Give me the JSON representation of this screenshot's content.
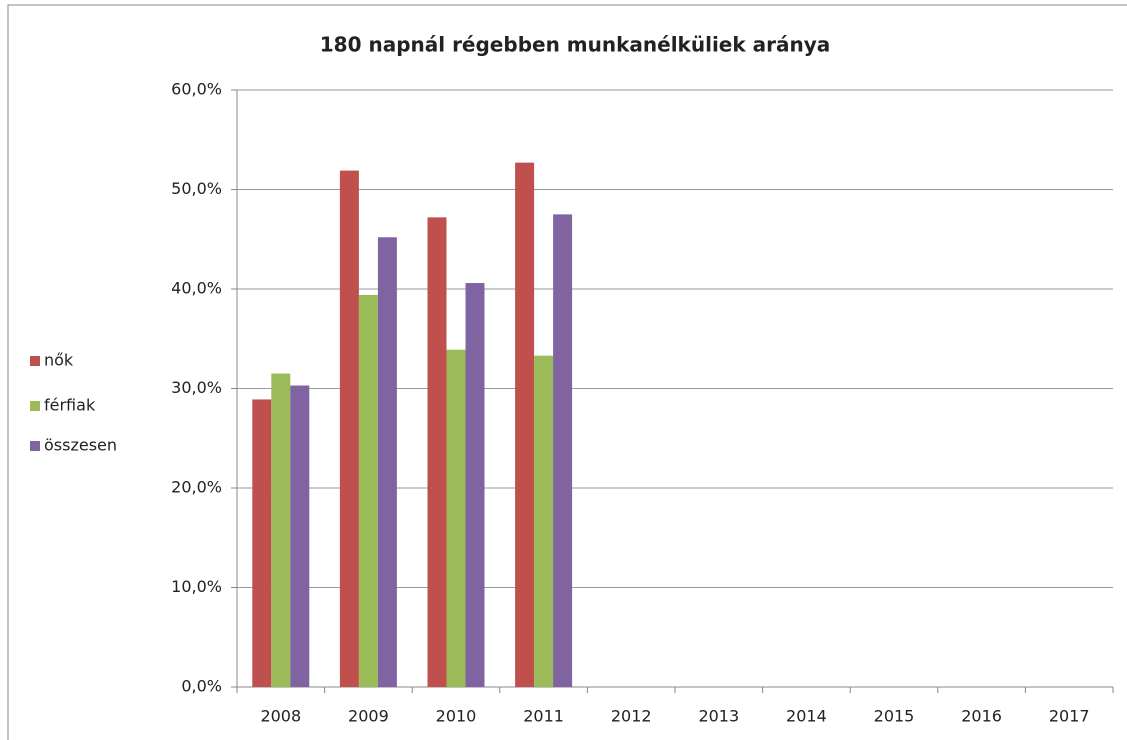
{
  "chart_data": {
    "type": "bar",
    "title": "180 napnál régebben munkanélküliek aránya",
    "categories": [
      "2008",
      "2009",
      "2010",
      "2011",
      "2012",
      "2013",
      "2014",
      "2015",
      "2016",
      "2017"
    ],
    "series": [
      {
        "name": "nők",
        "color": "#c0504d",
        "values": [
          28.9,
          51.9,
          47.2,
          52.7,
          null,
          null,
          null,
          null,
          null,
          null
        ]
      },
      {
        "name": "férfiak",
        "color": "#9bbb59",
        "values": [
          31.5,
          39.4,
          33.9,
          33.3,
          null,
          null,
          null,
          null,
          null,
          null
        ]
      },
      {
        "name": "összesen",
        "color": "#8064a2",
        "values": [
          30.3,
          45.2,
          40.6,
          47.5,
          null,
          null,
          null,
          null,
          null,
          null
        ]
      }
    ],
    "ylim": [
      0,
      60
    ],
    "yticks": [
      {
        "value": 0,
        "label": "0,0%"
      },
      {
        "value": 10,
        "label": "10,0%"
      },
      {
        "value": 20,
        "label": "20,0%"
      },
      {
        "value": 30,
        "label": "30,0%"
      },
      {
        "value": 40,
        "label": "40,0%"
      },
      {
        "value": 50,
        "label": "50,0%"
      },
      {
        "value": 60,
        "label": "60,0%"
      }
    ],
    "grid": true,
    "legend": "left"
  }
}
